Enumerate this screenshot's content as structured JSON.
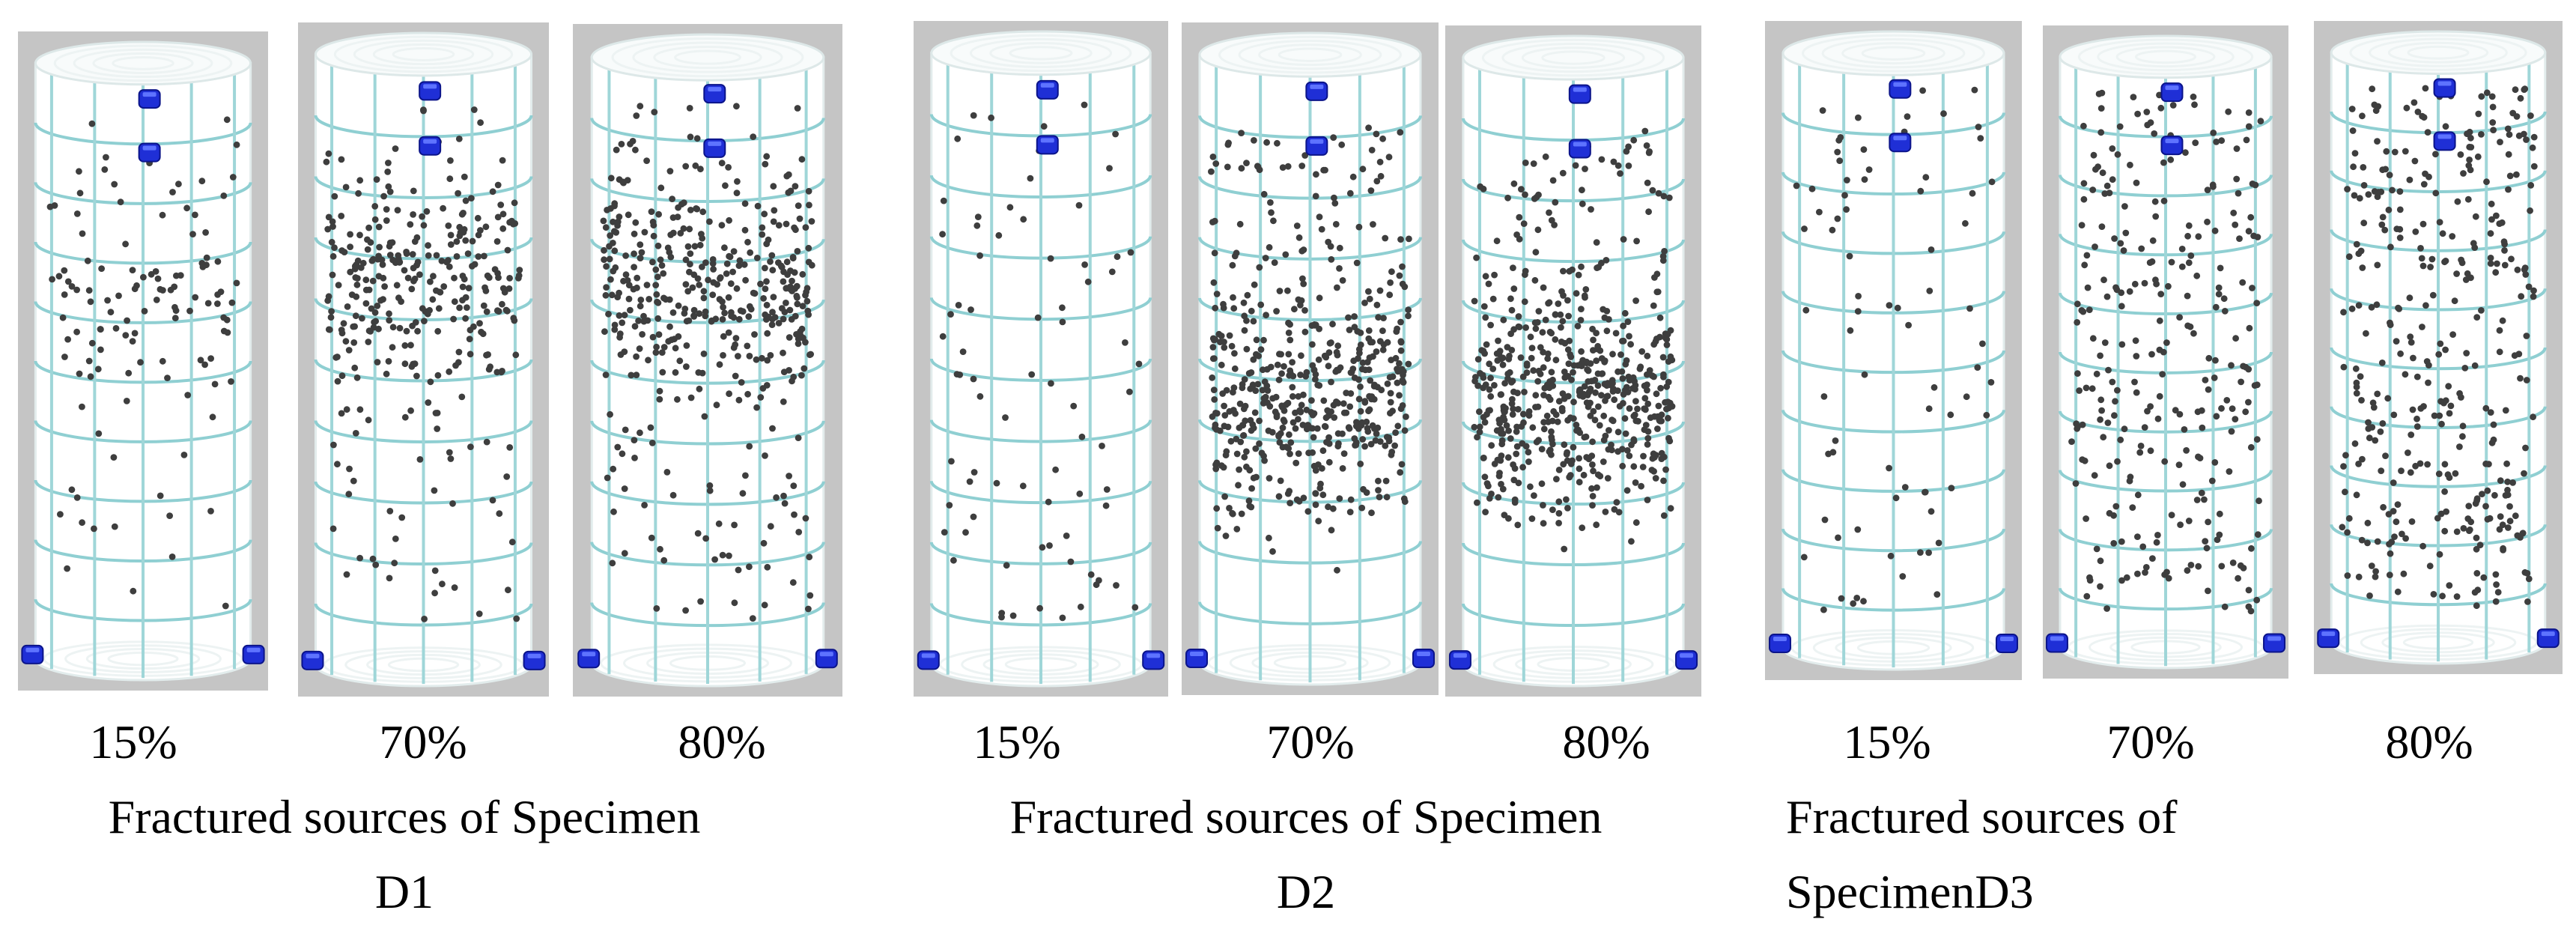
{
  "groups": [
    {
      "caption_lines": [
        "Fractured sources of Specimen",
        "D1"
      ],
      "caption_align": "center",
      "panels": [
        {
          "label": "15%",
          "density": 0.18,
          "distribution": "upper-mid"
        },
        {
          "label": "70%",
          "density": 0.55,
          "distribution": "upper-mid"
        },
        {
          "label": "80%",
          "density": 0.75,
          "distribution": "upper-mid"
        }
      ]
    },
    {
      "caption_lines": [
        "Fractured sources of Specimen",
        "D2"
      ],
      "caption_align": "center",
      "panels": [
        {
          "label": "15%",
          "density": 0.1,
          "distribution": "sparse"
        },
        {
          "label": "70%",
          "density": 0.9,
          "distribution": "lower"
        },
        {
          "label": "80%",
          "density": 1.0,
          "distribution": "lower"
        }
      ]
    },
    {
      "caption_lines": [
        "Fractured sources of",
        "SpecimenD3"
      ],
      "caption_align": "left",
      "panels": [
        {
          "label": "15%",
          "density": 0.1,
          "distribution": "sparse"
        },
        {
          "label": "70%",
          "density": 0.45,
          "distribution": "uniform"
        },
        {
          "label": "80%",
          "density": 0.6,
          "distribution": "uniform"
        }
      ]
    }
  ],
  "colors": {
    "panel_background": "#c5c5c5",
    "grid": "#9fd6d8",
    "fracture_source": "#3e3e3e",
    "sensor": "#1f2fd6"
  },
  "icons": {
    "sensor": "acoustic-emission-sensor-icon",
    "source": "fracture-source-dot"
  }
}
